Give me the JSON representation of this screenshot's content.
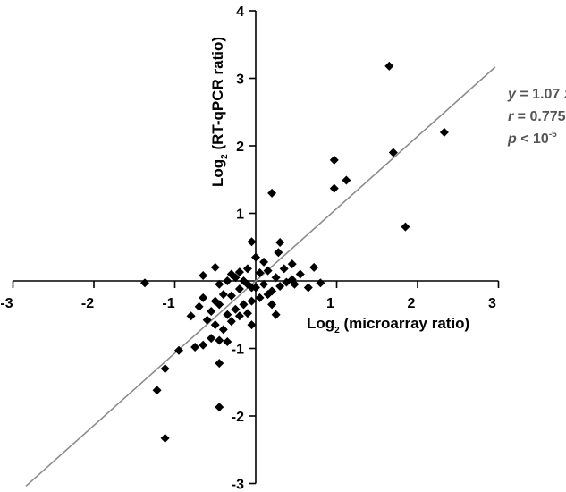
{
  "chart_data": {
    "type": "scatter",
    "xlabel": {
      "base": "Log",
      "sub": "2",
      "rest": " (microarray ratio)"
    },
    "ylabel": {
      "base": "Log",
      "sub": "2",
      "rest": " (RT-qPCR ratio)"
    },
    "xlim": [
      -3,
      3
    ],
    "ylim": [
      -3,
      4
    ],
    "x_ticks": [
      -3,
      -2,
      -1,
      1,
      2,
      3
    ],
    "y_ticks": [
      -3,
      -2,
      -1,
      1,
      2,
      3,
      4
    ],
    "fit_line": {
      "slope": 1.07,
      "x_range": [
        -2.84,
        2.96
      ],
      "color": "#8c8c8c"
    },
    "annotation": {
      "eq_var": "y",
      "eq_rest": " = 1.07 ",
      "eq_var2": "x",
      "r_var": "r",
      "r_rest": " = 0.775",
      "p_var": "p",
      "p_rest": " < 10",
      "p_sup": "-5"
    },
    "marker_color": "#000000",
    "grid": false,
    "points": [
      [
        1.65,
        3.18
      ],
      [
        2.33,
        2.2
      ],
      [
        1.7,
        1.9
      ],
      [
        0.97,
        1.79
      ],
      [
        0.97,
        1.37
      ],
      [
        1.12,
        1.49
      ],
      [
        0.2,
        1.3
      ],
      [
        1.85,
        0.8
      ],
      [
        -0.05,
        0.58
      ],
      [
        0.3,
        0.57
      ],
      [
        0.0,
        0.35
      ],
      [
        0.28,
        0.42
      ],
      [
        -1.37,
        -0.03
      ],
      [
        -0.65,
        0.08
      ],
      [
        -0.5,
        0.2
      ],
      [
        -0.45,
        -0.05
      ],
      [
        -0.35,
        0.0
      ],
      [
        -0.3,
        0.1
      ],
      [
        -0.2,
        0.13
      ],
      [
        -0.1,
        0.18
      ],
      [
        0.05,
        0.12
      ],
      [
        0.15,
        0.15
      ],
      [
        0.25,
        0.05
      ],
      [
        0.35,
        0.18
      ],
      [
        0.45,
        0.25
      ],
      [
        0.55,
        0.1
      ],
      [
        0.72,
        0.2
      ],
      [
        0.8,
        -0.03
      ],
      [
        0.65,
        -0.1
      ],
      [
        0.48,
        -0.05
      ],
      [
        0.38,
        -0.02
      ],
      [
        0.3,
        -0.08
      ],
      [
        0.2,
        -0.15
      ],
      [
        0.1,
        -0.05
      ],
      [
        0.0,
        -0.1
      ],
      [
        -0.1,
        -0.05
      ],
      [
        -0.2,
        -0.12
      ],
      [
        -0.3,
        -0.22
      ],
      [
        -0.4,
        -0.2
      ],
      [
        -0.5,
        -0.3
      ],
      [
        -0.55,
        -0.45
      ],
      [
        -0.45,
        -0.35
      ],
      [
        -0.35,
        -0.5
      ],
      [
        -0.25,
        -0.42
      ],
      [
        -0.15,
        -0.35
      ],
      [
        -0.05,
        -0.3
      ],
      [
        0.05,
        -0.25
      ],
      [
        0.15,
        -0.2
      ],
      [
        -0.6,
        -0.58
      ],
      [
        -0.5,
        -0.65
      ],
      [
        -0.4,
        -0.72
      ],
      [
        -0.3,
        -0.6
      ],
      [
        -0.2,
        -0.52
      ],
      [
        -0.1,
        -0.48
      ],
      [
        -0.05,
        -0.1
      ],
      [
        -0.15,
        0.0
      ],
      [
        -0.25,
        0.05
      ],
      [
        -0.65,
        -0.25
      ],
      [
        -0.7,
        -0.38
      ],
      [
        0.25,
        -0.5
      ],
      [
        -0.05,
        -0.65
      ],
      [
        -0.55,
        -0.85
      ],
      [
        -0.65,
        -0.95
      ],
      [
        -0.75,
        -0.98
      ],
      [
        -0.45,
        -0.88
      ],
      [
        -0.35,
        -0.9
      ],
      [
        -0.95,
        -1.03
      ],
      [
        -0.45,
        -1.22
      ],
      [
        -1.12,
        -1.3
      ],
      [
        -1.22,
        -1.62
      ],
      [
        -0.45,
        -1.87
      ],
      [
        -1.12,
        -2.33
      ],
      [
        0.1,
        0.28
      ],
      [
        0.2,
        -0.35
      ],
      [
        0.45,
        0.02
      ],
      [
        -0.8,
        -0.52
      ]
    ]
  }
}
